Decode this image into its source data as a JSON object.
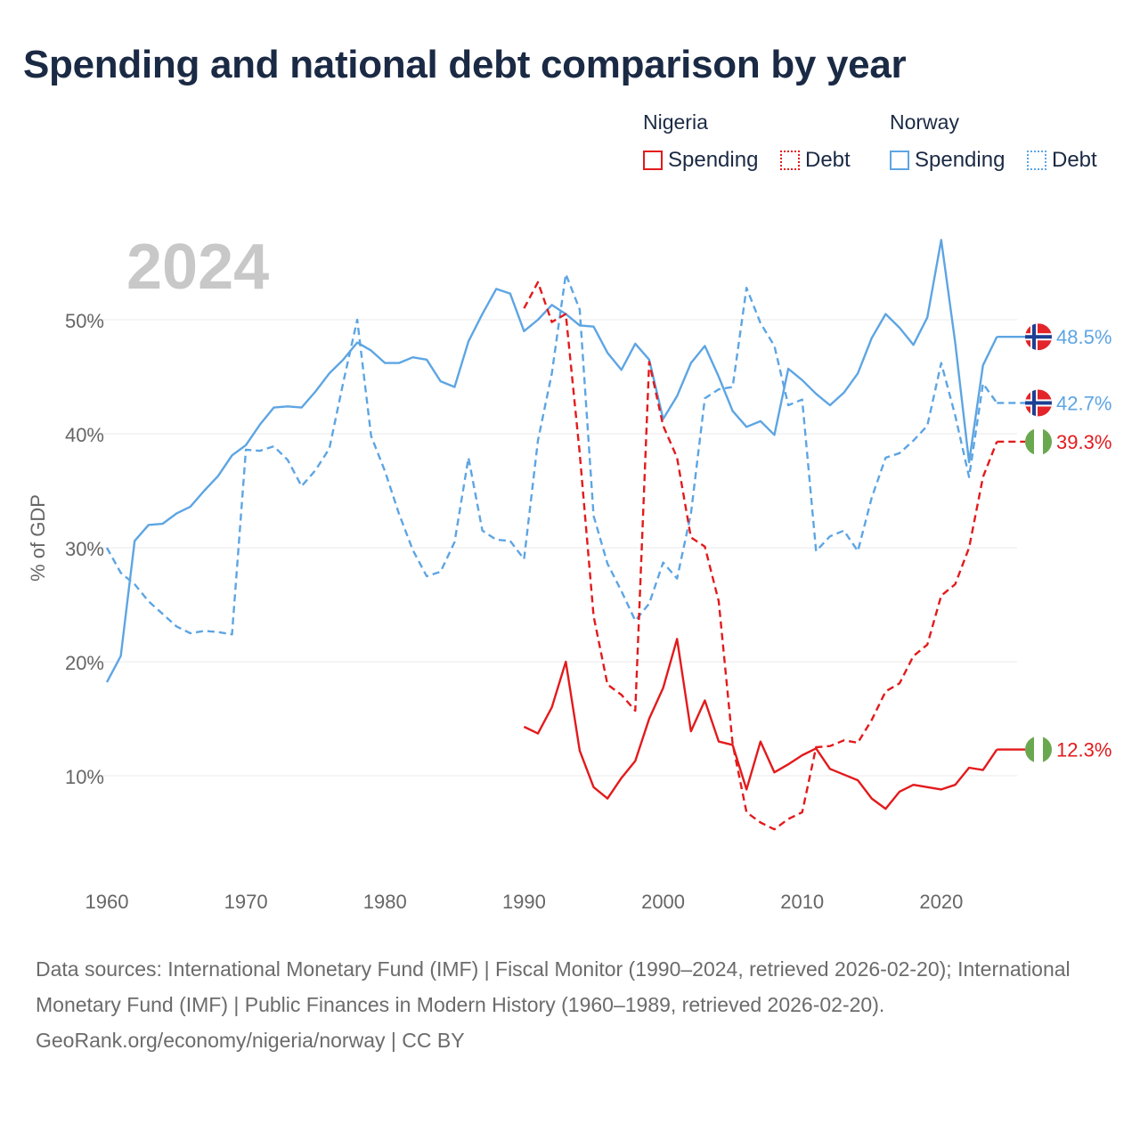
{
  "title": "Spending and national debt comparison by year",
  "legend": {
    "groups": [
      {
        "country": "Nigeria",
        "items": [
          {
            "label": "Spending",
            "color": "#e31a1c",
            "style": "solid"
          },
          {
            "label": "Debt",
            "color": "#e31a1c",
            "style": "dotted"
          }
        ]
      },
      {
        "country": "Norway",
        "items": [
          {
            "label": "Spending",
            "color": "#5da5e3",
            "style": "solid"
          },
          {
            "label": "Debt",
            "color": "#5da5e3",
            "style": "dotted"
          }
        ]
      }
    ]
  },
  "chart_data": {
    "type": "line",
    "title": "Spending and national debt comparison by year",
    "year_label": "2024",
    "xlabel": "",
    "ylabel": "% of GDP",
    "xlim": [
      1960,
      2024
    ],
    "ylim": [
      0,
      55
    ],
    "x_ticks": [
      1960,
      1970,
      1980,
      1990,
      2000,
      2010,
      2020
    ],
    "y_ticks": [
      10,
      20,
      30,
      40,
      50
    ],
    "y_tick_labels": [
      "10%",
      "20%",
      "30%",
      "40%",
      "50%"
    ],
    "grid": true,
    "series": [
      {
        "name": "Norway Spending",
        "country": "Norway",
        "metric": "Spending",
        "color": "#5da5e3",
        "dash": "solid",
        "start": 1960,
        "values": [
          18.2,
          20.5,
          30.6,
          32.0,
          32.1,
          33.0,
          33.6,
          35.0,
          36.3,
          38.1,
          39.0,
          40.8,
          42.3,
          42.4,
          42.3,
          43.7,
          45.3,
          46.5,
          48.0,
          47.3,
          46.2,
          46.2,
          46.7,
          46.5,
          44.6,
          44.1,
          48.1,
          50.5,
          52.7,
          52.3,
          49.0,
          50.0,
          51.3,
          50.5,
          49.5,
          49.4,
          47.1,
          45.6,
          47.9,
          46.5,
          41.3,
          43.3,
          46.2,
          47.7,
          45.0,
          42.0,
          40.6,
          41.1,
          39.9,
          45.7,
          44.7,
          43.5,
          42.5,
          43.6,
          45.3,
          48.4,
          50.5,
          49.3,
          47.8,
          50.2,
          57.0,
          48.0,
          37.5,
          46.0,
          48.5
        ],
        "end_label": "48.5%",
        "flag": "Norway"
      },
      {
        "name": "Norway Debt",
        "country": "Norway",
        "metric": "Debt",
        "color": "#5da5e3",
        "dash": "dashed",
        "start": 1960,
        "values": [
          30.0,
          27.8,
          26.8,
          25.3,
          24.2,
          23.1,
          22.5,
          22.7,
          22.6,
          22.4,
          38.6,
          38.5,
          38.9,
          37.7,
          35.4,
          36.8,
          38.7,
          44.5,
          50.0,
          39.8,
          36.7,
          33.0,
          29.8,
          27.5,
          27.9,
          30.5,
          37.9,
          31.5,
          30.7,
          30.6,
          29.0,
          39.4,
          45.3,
          54.0,
          50.9,
          32.8,
          28.6,
          26.2,
          23.6,
          25.1,
          28.7,
          27.3,
          33.0,
          43.1,
          43.9,
          44.1,
          52.8,
          49.7,
          47.7,
          42.5,
          43.0,
          29.7,
          31.0,
          31.5,
          29.7,
          34.4,
          37.9,
          38.3,
          39.4,
          40.7,
          46.2,
          41.6,
          36.2,
          44.4,
          42.7
        ],
        "end_label": "42.7%",
        "flag": "Norway"
      },
      {
        "name": "Nigeria Debt",
        "country": "Nigeria",
        "metric": "Debt",
        "color": "#e31a1c",
        "dash": "dashed",
        "start": 1990,
        "values": [
          51.0,
          53.3,
          49.8,
          50.5,
          38.3,
          24.0,
          18.0,
          17.1,
          15.7,
          46.3,
          40.7,
          37.9,
          30.9,
          30.1,
          25.3,
          12.8,
          6.8,
          5.9,
          5.3,
          6.2,
          6.8,
          12.5,
          12.6,
          13.1,
          12.9,
          14.9,
          17.4,
          18.1,
          20.5,
          21.5,
          25.8,
          26.8,
          30.0,
          36.2,
          39.3
        ],
        "end_label": "39.3%",
        "flag": "Nigeria"
      },
      {
        "name": "Nigeria Spending",
        "country": "Nigeria",
        "metric": "Spending",
        "color": "#e31a1c",
        "dash": "solid",
        "start": 1990,
        "values": [
          14.3,
          13.7,
          16.0,
          20.0,
          12.2,
          9.0,
          8.0,
          9.8,
          11.3,
          15.0,
          17.7,
          22.0,
          13.9,
          16.6,
          13.0,
          12.7,
          8.8,
          13.0,
          10.3,
          11.0,
          11.8,
          12.4,
          10.6,
          10.1,
          9.6,
          8.0,
          7.1,
          8.6,
          9.2,
          9.0,
          8.8,
          9.2,
          10.7,
          10.5,
          12.3
        ],
        "end_label": "12.3%",
        "flag": "Nigeria"
      }
    ]
  },
  "footer": {
    "sources": "Data sources: International Monetary Fund (IMF) | Fiscal Monitor (1990–2024, retrieved 2026-02-20); International Monetary Fund (IMF) | Public Finances in Modern History (1960–1989, retrieved 2026-02-20).",
    "link": "GeoRank.org/economy/nigeria/norway | CC BY"
  }
}
